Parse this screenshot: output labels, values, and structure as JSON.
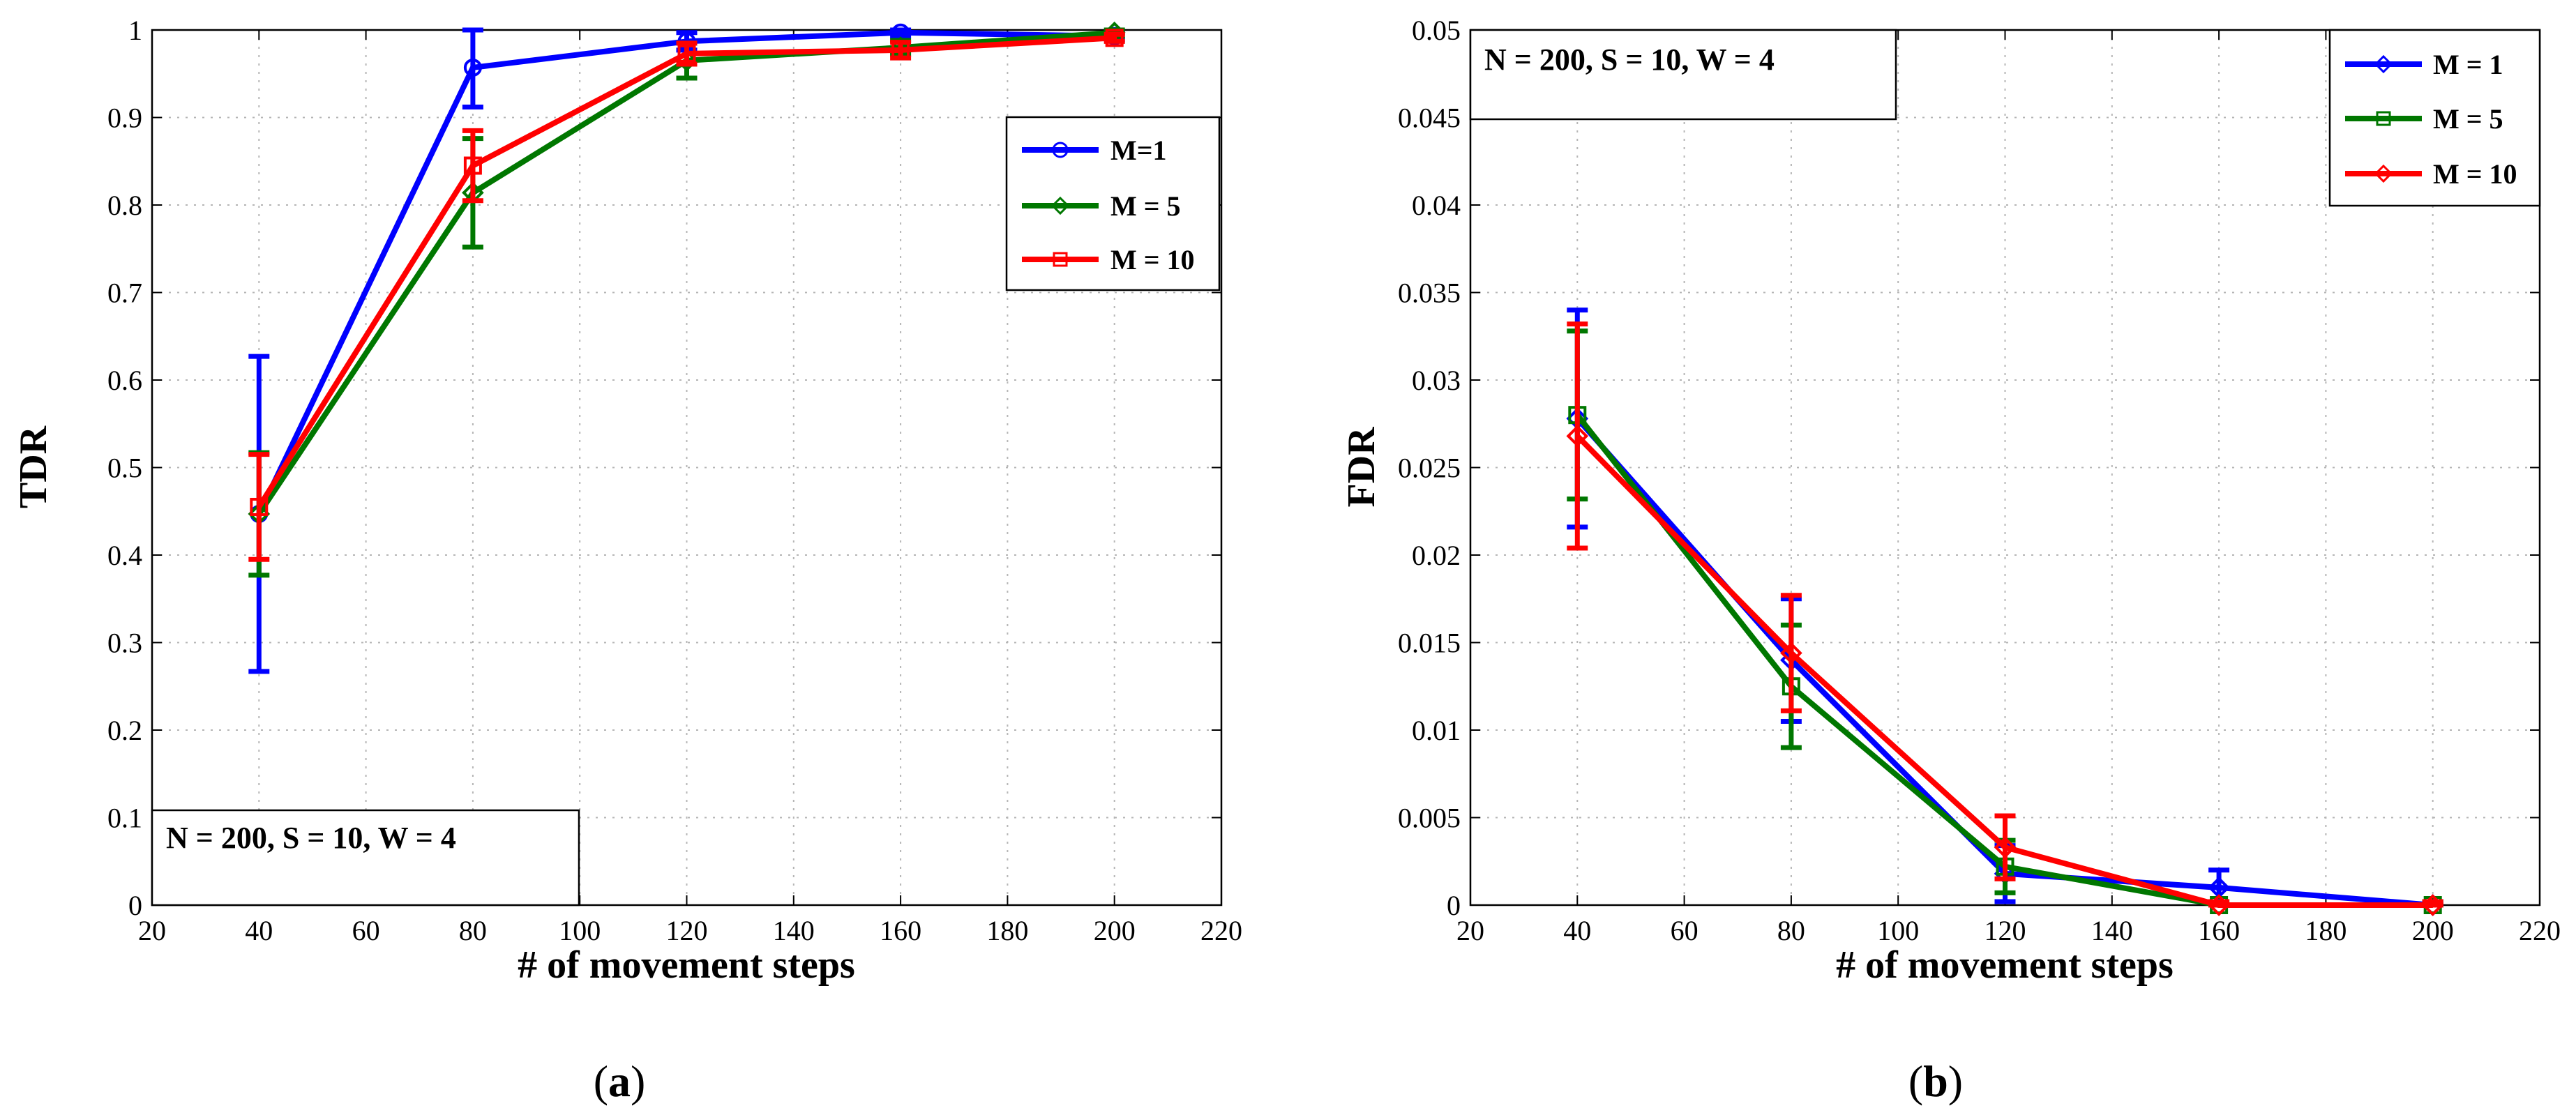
{
  "chart_data": [
    {
      "type": "line",
      "panel_label": "a",
      "title": "",
      "xlabel": "# of movement steps",
      "ylabel": "TDR",
      "xlim": [
        20,
        220
      ],
      "ylim": [
        0,
        1
      ],
      "xticks": [
        20,
        40,
        60,
        80,
        100,
        120,
        140,
        160,
        180,
        200,
        220
      ],
      "xtick_labels": [
        "20",
        "40",
        "60",
        "80",
        "100",
        "120",
        "140",
        "160",
        "180",
        "200",
        "220"
      ],
      "yticks": [
        0,
        0.1,
        0.2,
        0.3,
        0.4,
        0.5,
        0.6,
        0.7,
        0.8,
        0.9,
        1
      ],
      "ytick_labels": [
        "0",
        "0.1",
        "0.2",
        "0.3",
        "0.4",
        "0.5",
        "0.6",
        "0.7",
        "0.8",
        "0.9",
        "1"
      ],
      "grid": true,
      "legend_position": "top-right",
      "annotation": "N = 200, S = 10, W = 4",
      "annotation_position": "bottom-left",
      "x": [
        40,
        80,
        120,
        160,
        200
      ],
      "series": [
        {
          "name": "M=1",
          "color": "#0000ff",
          "marker": "circle",
          "values": [
            0.447,
            0.957,
            0.987,
            0.997,
            0.993
          ],
          "err": [
            0.18,
            0.045,
            0.01,
            0.004,
            0.004
          ]
        },
        {
          "name": "M = 5",
          "color": "#007700",
          "marker": "diamond",
          "values": [
            0.447,
            0.814,
            0.965,
            0.98,
            0.997
          ],
          "err": [
            0.07,
            0.062,
            0.02,
            0.008,
            0.004
          ]
        },
        {
          "name": "M = 10",
          "color": "#ff0000",
          "marker": "square",
          "values": [
            0.455,
            0.845,
            0.973,
            0.977,
            0.991
          ],
          "err": [
            0.06,
            0.04,
            0.012,
            0.009,
            0.004
          ]
        }
      ]
    },
    {
      "type": "line",
      "panel_label": "b",
      "title": "",
      "xlabel": "# of movement steps",
      "ylabel": "FDR",
      "xlim": [
        20,
        220
      ],
      "ylim": [
        0,
        0.05
      ],
      "xticks": [
        20,
        40,
        60,
        80,
        100,
        120,
        140,
        160,
        180,
        200,
        220
      ],
      "xtick_labels": [
        "20",
        "40",
        "60",
        "80",
        "100",
        "120",
        "140",
        "160",
        "180",
        "200",
        "220"
      ],
      "yticks": [
        0,
        0.005,
        0.01,
        0.015,
        0.02,
        0.025,
        0.03,
        0.035,
        0.04,
        0.045,
        0.05
      ],
      "ytick_labels": [
        "0",
        "0.005",
        "0.01",
        "0.015",
        "0.02",
        "0.025",
        "0.03",
        "0.035",
        "0.04",
        "0.045",
        "0.05"
      ],
      "grid": true,
      "legend_position": "top-right",
      "annotation": "N = 200, S = 10, W = 4",
      "annotation_position": "top-left",
      "x": [
        40,
        80,
        120,
        160,
        200
      ],
      "series": [
        {
          "name": "M = 1",
          "color": "#0000ff",
          "marker": "diamond",
          "values": [
            0.0278,
            0.014,
            0.0018,
            0.001,
            0.0
          ],
          "err": [
            0.0062,
            0.0035,
            0.0016,
            0.001,
            0.0002
          ]
        },
        {
          "name": "M = 5",
          "color": "#007700",
          "marker": "square",
          "values": [
            0.028,
            0.0125,
            0.0022,
            0.0,
            0.0
          ],
          "err": [
            0.0048,
            0.0035,
            0.0015,
            0.0002,
            0.0002
          ]
        },
        {
          "name": "M = 10",
          "color": "#ff0000",
          "marker": "diamond",
          "values": [
            0.0268,
            0.0144,
            0.0033,
            0.0,
            0.0
          ],
          "err": [
            0.0064,
            0.0033,
            0.0018,
            0.0002,
            0.0002
          ]
        }
      ]
    }
  ]
}
